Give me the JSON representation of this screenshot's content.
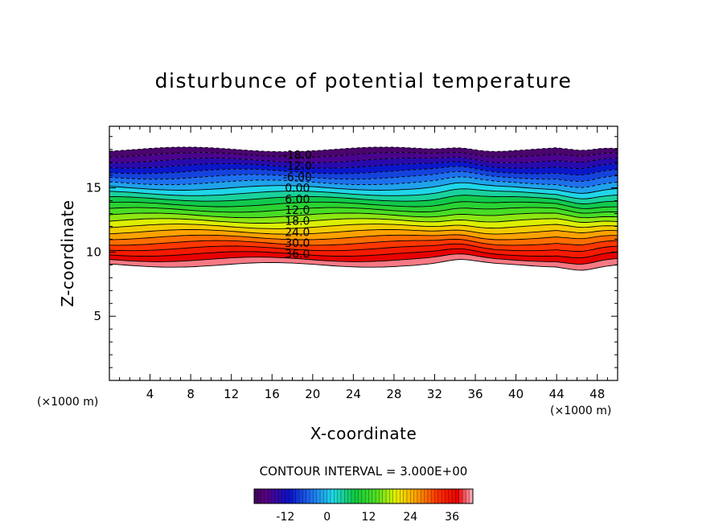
{
  "chart_data": {
    "type": "contour",
    "title": "disturbunce of potential temperature",
    "xlabel": "X-coordinate",
    "ylabel": "Z-coordinate",
    "x_unit_label": "(×1000 m)",
    "y_unit_label": "(×1000 m)",
    "xlim": [
      0,
      50
    ],
    "ylim": [
      0,
      19.8
    ],
    "x_ticks": [
      "4",
      "8",
      "12",
      "16",
      "20",
      "24",
      "28",
      "32",
      "36",
      "40",
      "44",
      "48"
    ],
    "y_ticks": [
      "5",
      "10",
      "15"
    ],
    "contour_interval_text": "CONTOUR INTERVAL = 3.000E+00",
    "contour_labels": [
      {
        "text": "-18.0",
        "value": -18
      },
      {
        "text": "-12.0",
        "value": -12
      },
      {
        "text": "-6.00",
        "value": -6
      },
      {
        "text": "0.00",
        "value": 0
      },
      {
        "text": "6.00",
        "value": 6
      },
      {
        "text": "12.0",
        "value": 12
      },
      {
        "text": "18.0",
        "value": 18
      },
      {
        "text": "24.0",
        "value": 24
      },
      {
        "text": "30.0",
        "value": 30
      },
      {
        "text": "36.0",
        "value": 36
      }
    ],
    "field_extent": {
      "z_bottom": 9.0,
      "z_top": 18.0
    },
    "value_range": [
      -21,
      42
    ],
    "colorbar_ticks": [
      "-12",
      "0",
      "12",
      "24",
      "36"
    ],
    "colormap": "rainbow (purple → blue → cyan → green → yellow → orange → red → pink)",
    "grid": false,
    "negative_contours": "dashed",
    "positive_contours": "solid"
  }
}
